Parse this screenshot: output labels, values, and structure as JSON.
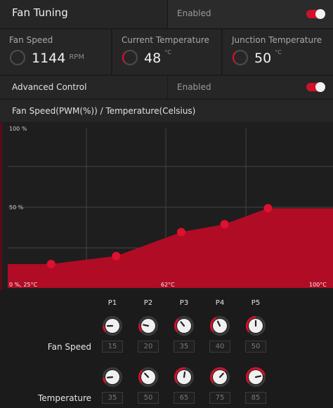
{
  "header": {
    "title": "Fan Tuning",
    "status": "Enabled"
  },
  "stats": [
    {
      "label": "Fan Speed",
      "value": "1144",
      "unit": "RPM",
      "gauge_color": "#555555"
    },
    {
      "label": "Current Temperature",
      "value": "48",
      "unit": "°C",
      "gauge_color": "#d0112b"
    },
    {
      "label": "Junction Temperature",
      "value": "50",
      "unit": "°C",
      "gauge_color": "#d0112b"
    }
  ],
  "advanced": {
    "label": "Advanced Control",
    "status": "Enabled"
  },
  "chart_title": "Fan Speed(PWM(%)) / Temperature(Celsius)",
  "chart_data": {
    "type": "area",
    "title": "Fan Speed(PWM(%)) / Temperature(Celsius)",
    "x_unit": "°C",
    "y_unit": "%",
    "xlim": [
      25,
      100
    ],
    "ylim": [
      0,
      100
    ],
    "tick_labels": {
      "y_top": "100 %",
      "y_mid": "50 %",
      "origin": "0 %, 25°C",
      "x_mid": "62°C",
      "x_max": "100°C"
    },
    "x": [
      35,
      50,
      65,
      75,
      85
    ],
    "y": [
      15,
      20,
      35,
      40,
      50
    ],
    "fill_color": "#b00c25",
    "point_color": "#e0102f",
    "grid": true
  },
  "controls": {
    "points": [
      "P1",
      "P2",
      "P3",
      "P4",
      "P5"
    ],
    "fan_speed_label": "Fan Speed",
    "temperature_label": "Temperature",
    "fan_speed": [
      "15",
      "20",
      "35",
      "40",
      "50"
    ],
    "temperature": [
      "35",
      "50",
      "65",
      "75",
      "85"
    ],
    "accent": "#d0112b"
  }
}
